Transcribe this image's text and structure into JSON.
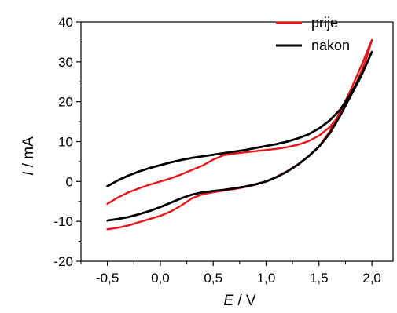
{
  "chart_data": {
    "type": "line",
    "title": "",
    "xlabel": {
      "symbol": "E",
      "unit": " / V"
    },
    "ylabel": {
      "symbol": "I",
      "unit": " / mA"
    },
    "xlim": [
      -0.75,
      2.2
    ],
    "ylim": [
      -20,
      40
    ],
    "x_ticks": [
      -0.5,
      0.0,
      0.5,
      1.0,
      1.5,
      2.0
    ],
    "x_tick_labels": [
      "-0,5",
      "0,0",
      "0,5",
      "1,0",
      "1,5",
      "2,0"
    ],
    "y_ticks": [
      -20,
      -10,
      0,
      10,
      20,
      30,
      40
    ],
    "y_tick_labels": [
      "-20",
      "-10",
      "0",
      "10",
      "20",
      "30",
      "40"
    ],
    "grid": false,
    "legend_position": "top-right",
    "series": [
      {
        "name": "prije",
        "color": "#e8141c",
        "x": [
          -0.5,
          -0.4,
          -0.3,
          -0.2,
          -0.1,
          0.0,
          0.1,
          0.2,
          0.3,
          0.4,
          0.5,
          0.6,
          0.7,
          0.8,
          0.9,
          1.0,
          1.1,
          1.2,
          1.3,
          1.4,
          1.5,
          1.6,
          1.7,
          1.8,
          1.9,
          2.0,
          1.95,
          1.9,
          1.8,
          1.7,
          1.6,
          1.5,
          1.4,
          1.3,
          1.2,
          1.1,
          1.0,
          0.9,
          0.8,
          0.7,
          0.6,
          0.5,
          0.4,
          0.3,
          0.2,
          0.1,
          0.0,
          -0.1,
          -0.2,
          -0.3,
          -0.4,
          -0.5
        ],
        "y": [
          -12.0,
          -11.6,
          -11.0,
          -10.2,
          -9.4,
          -8.6,
          -7.5,
          -6.0,
          -4.2,
          -3.2,
          -2.7,
          -2.3,
          -1.9,
          -1.4,
          -0.8,
          0.0,
          1.2,
          2.6,
          4.3,
          6.3,
          8.8,
          12.5,
          17.5,
          23.0,
          29.0,
          35.5,
          31.0,
          27.5,
          21.5,
          16.8,
          13.6,
          11.5,
          10.1,
          9.2,
          8.6,
          8.2,
          7.9,
          7.6,
          7.3,
          7.0,
          6.6,
          5.5,
          4.0,
          2.9,
          1.8,
          0.8,
          0.0,
          -0.8,
          -1.7,
          -2.7,
          -4.0,
          -5.6
        ]
      },
      {
        "name": "nakon",
        "color": "#000000",
        "x": [
          -0.5,
          -0.4,
          -0.3,
          -0.2,
          -0.1,
          0.0,
          0.1,
          0.2,
          0.3,
          0.4,
          0.5,
          0.6,
          0.7,
          0.8,
          0.9,
          1.0,
          1.1,
          1.2,
          1.3,
          1.4,
          1.5,
          1.6,
          1.7,
          1.8,
          1.9,
          2.0,
          1.95,
          1.9,
          1.8,
          1.7,
          1.6,
          1.5,
          1.4,
          1.3,
          1.2,
          1.1,
          1.0,
          0.9,
          0.8,
          0.7,
          0.6,
          0.5,
          0.4,
          0.3,
          0.2,
          0.1,
          0.0,
          -0.1,
          -0.2,
          -0.3,
          -0.4,
          -0.5
        ],
        "y": [
          -9.8,
          -9.4,
          -8.9,
          -8.2,
          -7.4,
          -6.4,
          -5.3,
          -4.2,
          -3.3,
          -2.7,
          -2.4,
          -2.1,
          -1.7,
          -1.3,
          -0.7,
          0.0,
          1.1,
          2.5,
          4.2,
          6.3,
          8.7,
          12.0,
          16.5,
          21.5,
          26.5,
          32.5,
          29.5,
          26.8,
          22.0,
          18.0,
          15.3,
          13.3,
          11.8,
          10.8,
          10.0,
          9.4,
          8.9,
          8.4,
          7.9,
          7.5,
          7.1,
          6.7,
          6.3,
          5.9,
          5.4,
          4.8,
          4.1,
          3.4,
          2.5,
          1.5,
          0.3,
          -1.2
        ]
      }
    ]
  }
}
